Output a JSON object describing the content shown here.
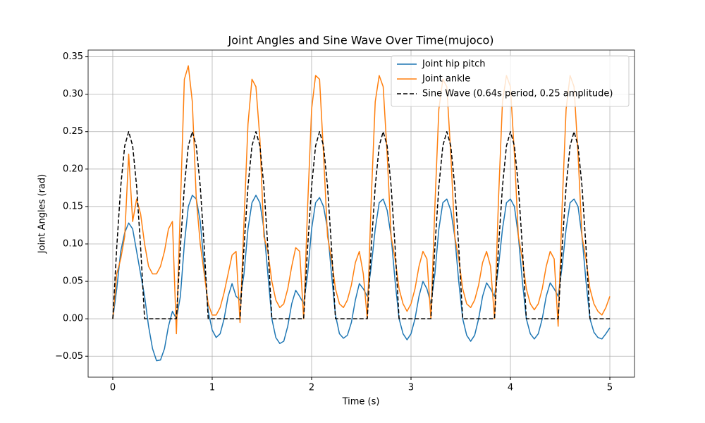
{
  "chart_data": {
    "type": "line",
    "title": "Joint Angles and Sine Wave Over Time(mujoco)",
    "x_label": "Time (s)",
    "y_label": "Joint Angles (rad)",
    "x": [
      0,
      0.04,
      0.08,
      0.12,
      0.16,
      0.2,
      0.24,
      0.28,
      0.32,
      0.36,
      0.4,
      0.44,
      0.48,
      0.52,
      0.56,
      0.6,
      0.64,
      0.68,
      0.72,
      0.76,
      0.8,
      0.84,
      0.88,
      0.92,
      0.96,
      1,
      1.04,
      1.08,
      1.12,
      1.16,
      1.2,
      1.24,
      1.28,
      1.32,
      1.36,
      1.4,
      1.44,
      1.48,
      1.52,
      1.56,
      1.6,
      1.64,
      1.68,
      1.72,
      1.76,
      1.8,
      1.84,
      1.88,
      1.92,
      1.96,
      2,
      2.04,
      2.08,
      2.12,
      2.16,
      2.2,
      2.24,
      2.28,
      2.32,
      2.36,
      2.4,
      2.44,
      2.48,
      2.52,
      2.56,
      2.6,
      2.64,
      2.68,
      2.72,
      2.76,
      2.8,
      2.84,
      2.88,
      2.92,
      2.96,
      3,
      3.04,
      3.08,
      3.12,
      3.16,
      3.2,
      3.24,
      3.28,
      3.32,
      3.36,
      3.4,
      3.44,
      3.48,
      3.52,
      3.56,
      3.6,
      3.64,
      3.68,
      3.72,
      3.76,
      3.8,
      3.84,
      3.88,
      3.92,
      3.96,
      4,
      4.04,
      4.08,
      4.12,
      4.16,
      4.2,
      4.24,
      4.28,
      4.32,
      4.36,
      4.4,
      4.44,
      4.48,
      4.52,
      4.56,
      4.6,
      4.64,
      4.68,
      4.72,
      4.76,
      4.8,
      4.84,
      4.88,
      4.92,
      4.96,
      5
    ],
    "series": [
      {
        "name": "Joint hip pitch",
        "color": "#1f77b4",
        "dash": "solid",
        "values": [
          0,
          0.04,
          0.09,
          0.115,
          0.128,
          0.12,
          0.09,
          0.06,
          0.03,
          -0.01,
          -0.04,
          -0.056,
          -0.055,
          -0.04,
          -0.01,
          0.01,
          0,
          0.03,
          0.1,
          0.15,
          0.165,
          0.16,
          0.13,
          0.07,
          0.01,
          -0.015,
          -0.025,
          -0.02,
          0,
          0.03,
          0.047,
          0.03,
          0.025,
          0.06,
          0.12,
          0.155,
          0.165,
          0.155,
          0.12,
          0.06,
          0,
          -0.025,
          -0.033,
          -0.03,
          -0.01,
          0.02,
          0.038,
          0.03,
          0.02,
          0.06,
          0.12,
          0.155,
          0.162,
          0.15,
          0.12,
          0.06,
          0.005,
          -0.02,
          -0.026,
          -0.022,
          -0.005,
          0.025,
          0.047,
          0.04,
          0.03,
          0.07,
          0.12,
          0.155,
          0.16,
          0.145,
          0.11,
          0.05,
          0,
          -0.02,
          -0.028,
          -0.02,
          0,
          0.03,
          0.05,
          0.04,
          0.02,
          0.06,
          0.12,
          0.155,
          0.16,
          0.145,
          0.11,
          0.05,
          0,
          -0.022,
          -0.03,
          -0.022,
          0,
          0.03,
          0.048,
          0.04,
          0.03,
          0.07,
          0.12,
          0.155,
          0.16,
          0.15,
          0.11,
          0.05,
          0,
          -0.02,
          -0.027,
          -0.02,
          0,
          0.03,
          0.048,
          0.04,
          0.03,
          0.07,
          0.12,
          0.155,
          0.16,
          0.15,
          0.11,
          0.05,
          0,
          -0.018,
          -0.025,
          -0.027,
          -0.02,
          -0.012
        ]
      },
      {
        "name": "Joint ankle",
        "color": "#ff7f0e",
        "dash": "solid",
        "values": [
          0,
          0.06,
          0.08,
          0.11,
          0.22,
          0.13,
          0.16,
          0.14,
          0.1,
          0.07,
          0.06,
          0.06,
          0.07,
          0.09,
          0.12,
          0.13,
          -0.02,
          0.15,
          0.32,
          0.338,
          0.29,
          0.16,
          0.1,
          0.06,
          0.02,
          0.005,
          0.005,
          0.015,
          0.035,
          0.06,
          0.085,
          0.09,
          -0.005,
          0.13,
          0.26,
          0.32,
          0.31,
          0.24,
          0.11,
          0.09,
          0.05,
          0.025,
          0.015,
          0.02,
          0.04,
          0.07,
          0.095,
          0.09,
          0,
          0.15,
          0.28,
          0.325,
          0.32,
          0.22,
          0.11,
          0.08,
          0.04,
          0.02,
          0.015,
          0.025,
          0.045,
          0.075,
          0.09,
          0.06,
          0,
          0.16,
          0.29,
          0.325,
          0.31,
          0.22,
          0.11,
          0.08,
          0.04,
          0.02,
          0.01,
          0.02,
          0.04,
          0.07,
          0.09,
          0.08,
          0,
          0.15,
          0.28,
          0.32,
          0.31,
          0.22,
          0.11,
          0.08,
          0.04,
          0.02,
          0.015,
          0.025,
          0.045,
          0.075,
          0.09,
          0.07,
          0,
          0.16,
          0.29,
          0.325,
          0.31,
          0.22,
          0.11,
          0.08,
          0.04,
          0.02,
          0.012,
          0.02,
          0.04,
          0.07,
          0.09,
          0.08,
          -0.01,
          0.15,
          0.28,
          0.325,
          0.31,
          0.22,
          0.11,
          0.08,
          0.04,
          0.02,
          0.01,
          0.005,
          0.015,
          0.03
        ]
      },
      {
        "name": "Sine Wave (0.64s period, 0.25 amplitude)",
        "color": "#000000",
        "dash": "dashed",
        "values": [
          0,
          0.0957,
          0.1768,
          0.231,
          0.25,
          0.231,
          0.1768,
          0.0957,
          0,
          0,
          0,
          0,
          0,
          0,
          0,
          0,
          0,
          0.0957,
          0.1768,
          0.231,
          0.25,
          0.231,
          0.1768,
          0.0957,
          0,
          0,
          0,
          0,
          0,
          0,
          0,
          0,
          0,
          0.0957,
          0.1768,
          0.231,
          0.25,
          0.231,
          0.1768,
          0.0957,
          0,
          0,
          0,
          0,
          0,
          0,
          0,
          0,
          0,
          0.0957,
          0.1768,
          0.231,
          0.25,
          0.231,
          0.1768,
          0.0957,
          0,
          0,
          0,
          0,
          0,
          0,
          0,
          0,
          0,
          0.0957,
          0.1768,
          0.231,
          0.25,
          0.231,
          0.1768,
          0.0957,
          0,
          0,
          0,
          0,
          0,
          0,
          0,
          0,
          0,
          0.0957,
          0.1768,
          0.231,
          0.25,
          0.231,
          0.1768,
          0.0957,
          0,
          0,
          0,
          0,
          0,
          0,
          0,
          0,
          0,
          0.0957,
          0.1768,
          0.231,
          0.25,
          0.231,
          0.1768,
          0.0957,
          0,
          0,
          0,
          0,
          0,
          0,
          0,
          0,
          0,
          0.0957,
          0.1768,
          0.231,
          0.25,
          0.231,
          0.1768,
          0.0957,
          0,
          0,
          0,
          0,
          0,
          0
        ]
      }
    ],
    "xlim": [
      -0.248,
      5.248
    ],
    "ylim": [
      -0.078,
      0.359
    ],
    "xticks": [
      0,
      1,
      2,
      3,
      4,
      5
    ],
    "yticks": [
      {
        "value": -0.05,
        "label": "−0.05"
      },
      {
        "value": 0,
        "label": "0.00"
      },
      0.05,
      {
        "value": 0.1,
        "label": "0.10"
      },
      0.15,
      {
        "value": 0.2,
        "label": "0.20"
      },
      0.25,
      {
        "value": 0.3,
        "label": "0.30"
      },
      0.35
    ],
    "grid": true,
    "legend": "upper-right"
  }
}
